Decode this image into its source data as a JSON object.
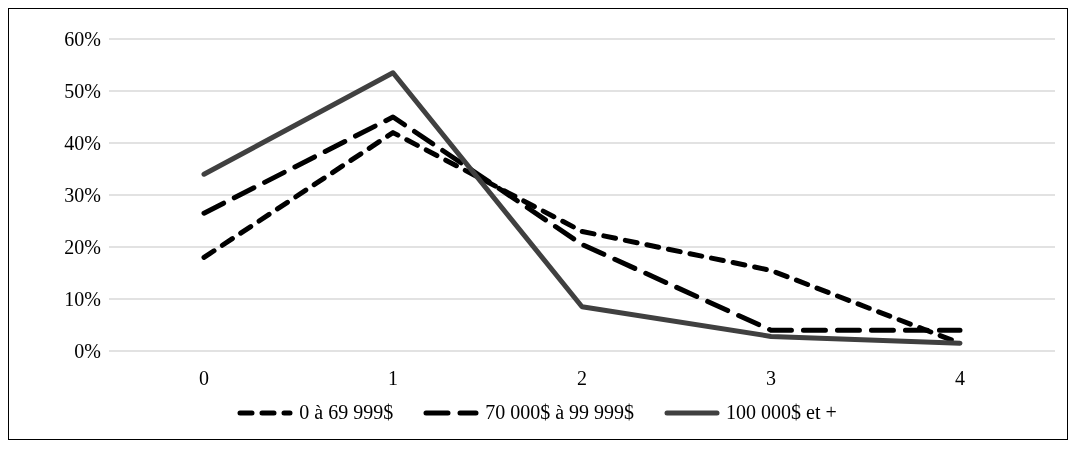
{
  "chart_data": {
    "type": "line",
    "categories": [
      "0",
      "1",
      "2",
      "3",
      "4"
    ],
    "series": [
      {
        "name": "0 à 69 999$",
        "color": "#000000",
        "line_style": "dashed",
        "values": [
          18,
          42,
          23,
          15.5,
          1.5
        ]
      },
      {
        "name": "70 000$ à 99 999$",
        "color": "#000000",
        "line_style": "dashed",
        "values": [
          26.5,
          45,
          20.5,
          4,
          4
        ]
      },
      {
        "name": "100 000$ et +",
        "color": "#404040",
        "line_style": "solid",
        "values": [
          34,
          53.5,
          8.5,
          2.8,
          1.5
        ]
      }
    ],
    "ylim": [
      0,
      60
    ],
    "yticks": [
      {
        "value": 0,
        "label": "0%"
      },
      {
        "value": 10,
        "label": "10%"
      },
      {
        "value": 20,
        "label": "20%"
      },
      {
        "value": 30,
        "label": "30%"
      },
      {
        "value": 40,
        "label": "40%"
      },
      {
        "value": 50,
        "label": "50%"
      },
      {
        "value": 60,
        "label": "60%"
      }
    ],
    "grid": "y",
    "legend": "bottom",
    "marker": "none"
  }
}
